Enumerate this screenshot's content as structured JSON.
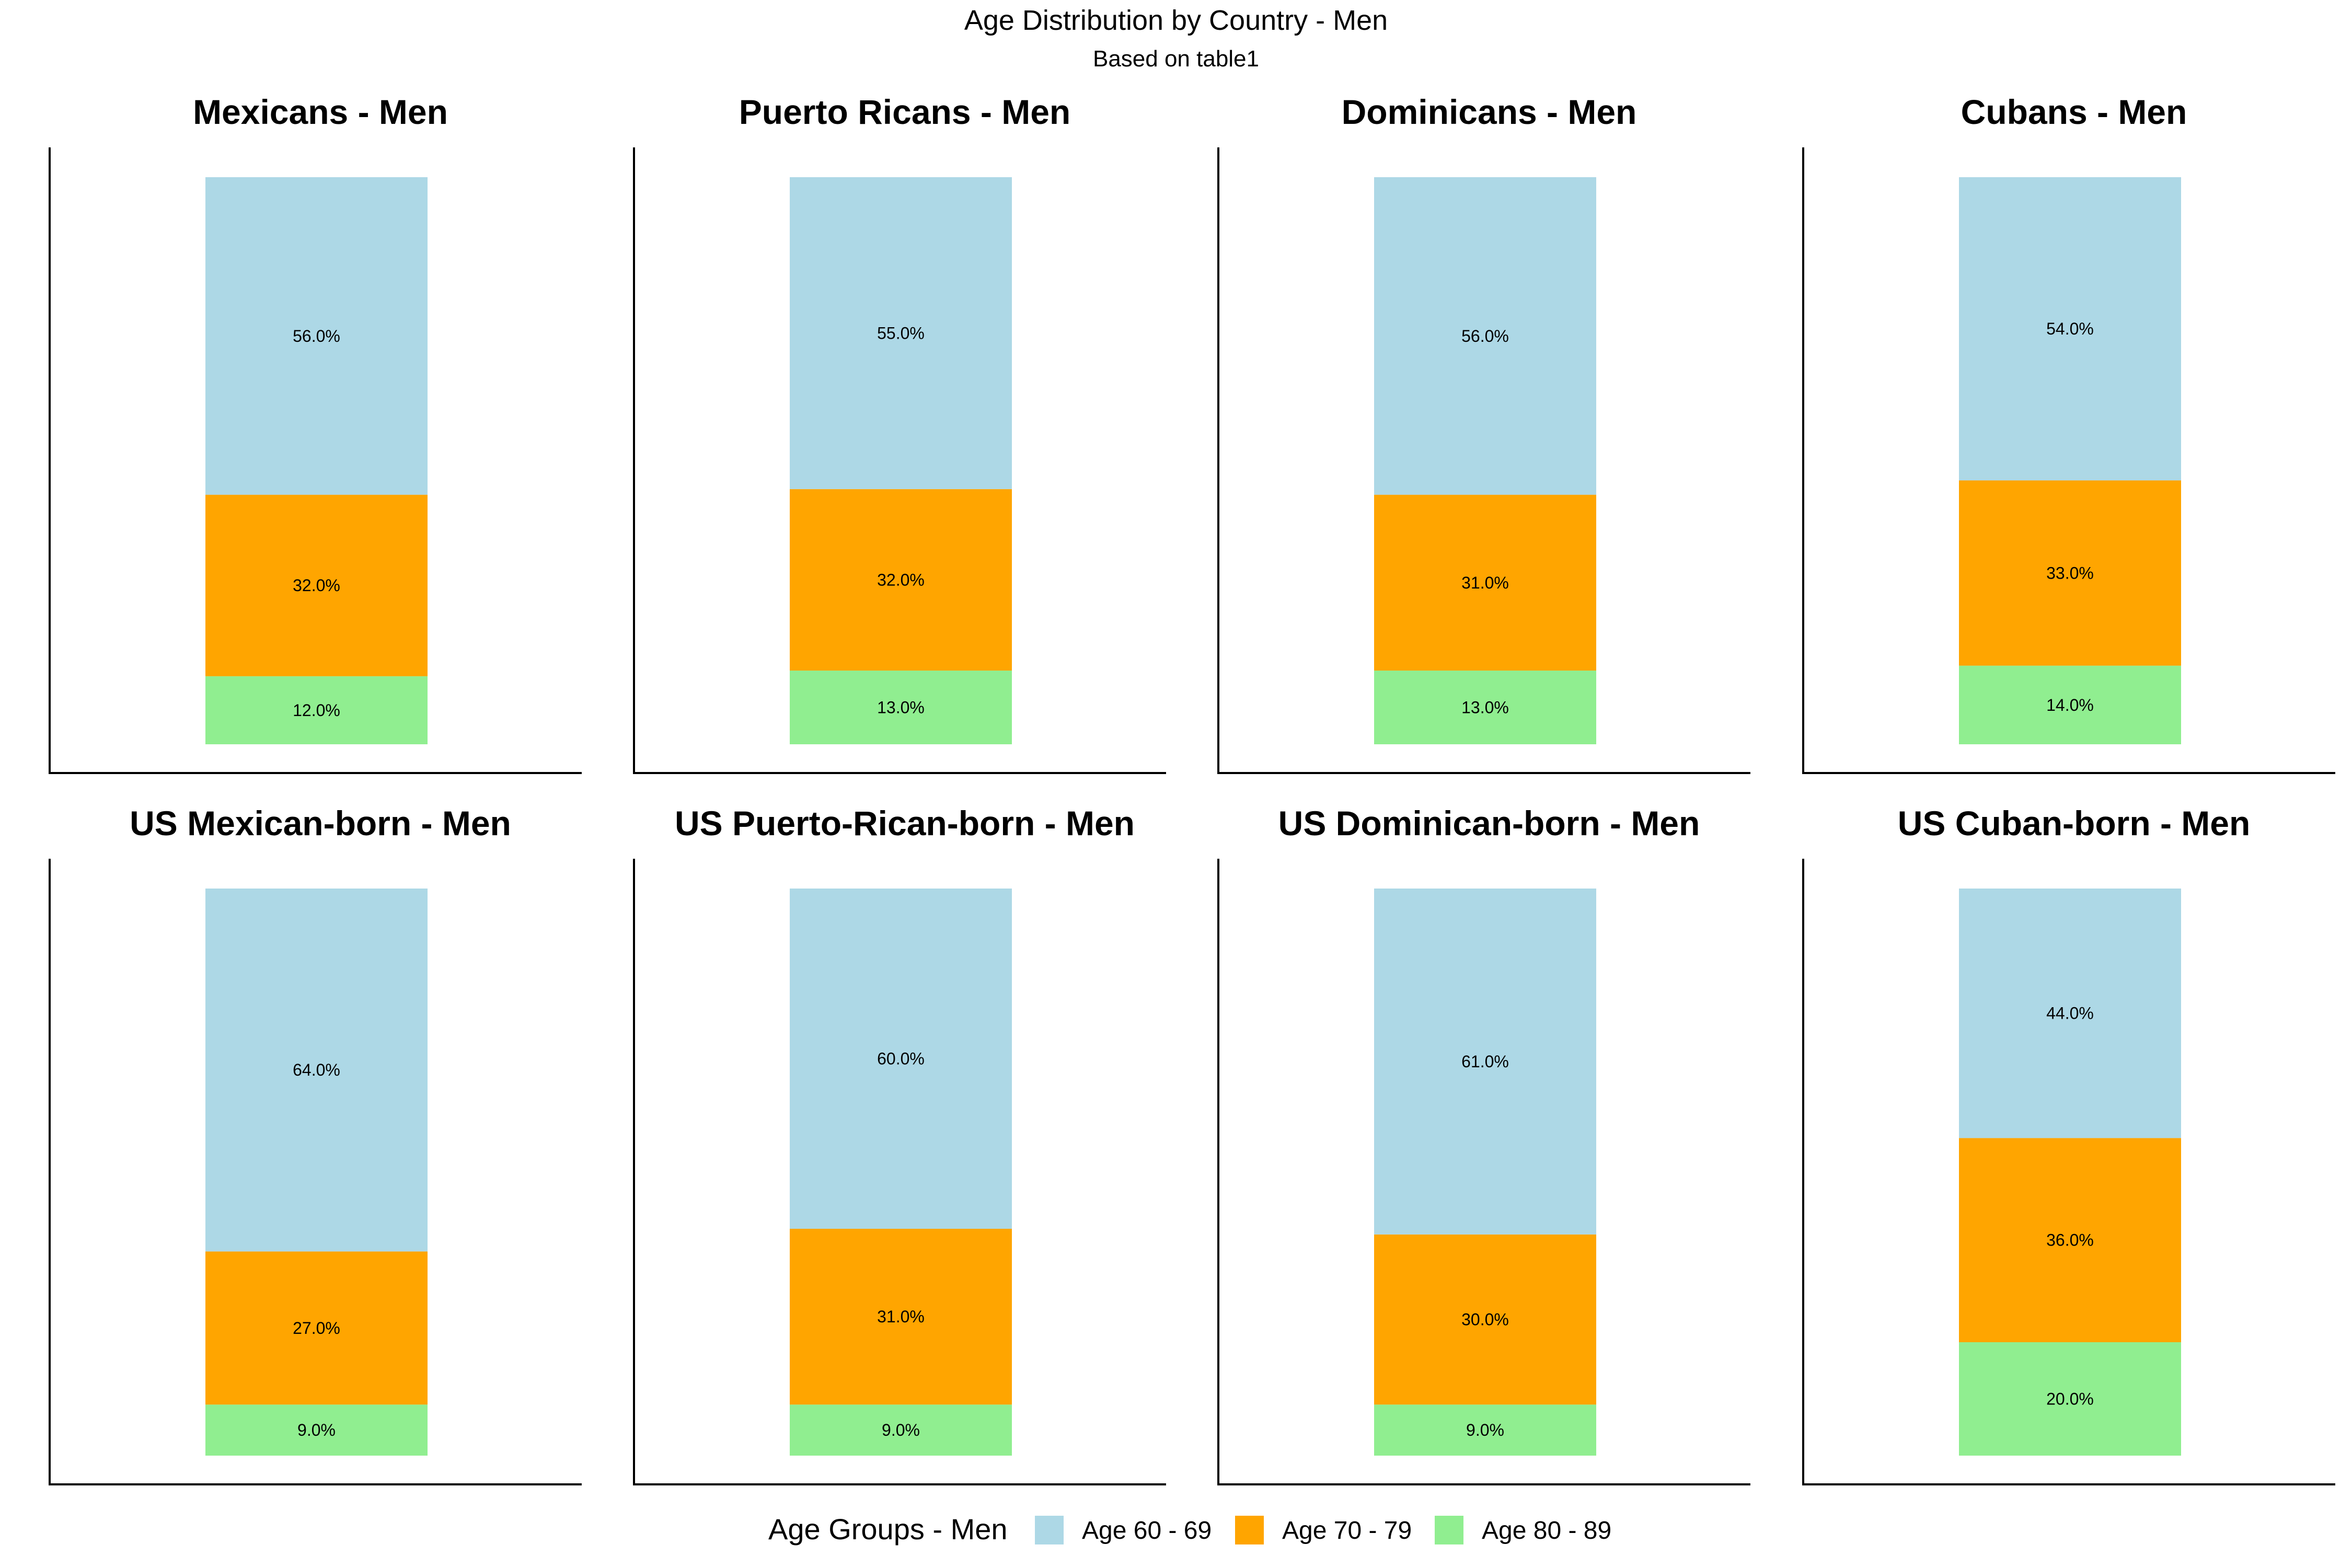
{
  "title": "Age Distribution by Country - Men",
  "subtitle": "Based on table1",
  "legend": {
    "title": "Age Groups - Men",
    "items": [
      {
        "label": "Age 60 - 69",
        "color": "#ADD8E6"
      },
      {
        "label": "Age 70 - 79",
        "color": "#FFA500"
      },
      {
        "label": "Age 80 - 89",
        "color": "#90EE90"
      }
    ]
  },
  "chart_data": [
    {
      "type": "bar",
      "stacked": true,
      "title": "Mexicans - Men",
      "series": [
        {
          "name": "Age 60 - 69",
          "value": 56.0
        },
        {
          "name": "Age 70 - 79",
          "value": 32.0
        },
        {
          "name": "Age 80 - 89",
          "value": 12.0
        }
      ]
    },
    {
      "type": "bar",
      "stacked": true,
      "title": "Puerto Ricans - Men",
      "series": [
        {
          "name": "Age 60 - 69",
          "value": 55.0
        },
        {
          "name": "Age 70 - 79",
          "value": 32.0
        },
        {
          "name": "Age 80 - 89",
          "value": 13.0
        }
      ]
    },
    {
      "type": "bar",
      "stacked": true,
      "title": "Dominicans - Men",
      "series": [
        {
          "name": "Age 60 - 69",
          "value": 56.0
        },
        {
          "name": "Age 70 - 79",
          "value": 31.0
        },
        {
          "name": "Age 80 - 89",
          "value": 13.0
        }
      ]
    },
    {
      "type": "bar",
      "stacked": true,
      "title": "Cubans - Men",
      "series": [
        {
          "name": "Age 60 - 69",
          "value": 54.0
        },
        {
          "name": "Age 70 - 79",
          "value": 33.0
        },
        {
          "name": "Age 80 - 89",
          "value": 14.0
        }
      ]
    },
    {
      "type": "bar",
      "stacked": true,
      "title": "US Mexican-born - Men",
      "series": [
        {
          "name": "Age 60 - 69",
          "value": 64.0
        },
        {
          "name": "Age 70 - 79",
          "value": 27.0
        },
        {
          "name": "Age 80 - 89",
          "value": 9.0
        }
      ]
    },
    {
      "type": "bar",
      "stacked": true,
      "title": "US Puerto-Rican-born - Men",
      "series": [
        {
          "name": "Age 60 - 69",
          "value": 60.0
        },
        {
          "name": "Age 70 - 79",
          "value": 31.0
        },
        {
          "name": "Age 80 - 89",
          "value": 9.0
        }
      ]
    },
    {
      "type": "bar",
      "stacked": true,
      "title": "US Dominican-born - Men",
      "series": [
        {
          "name": "Age 60 - 69",
          "value": 61.0
        },
        {
          "name": "Age 70 - 79",
          "value": 30.0
        },
        {
          "name": "Age 80 - 89",
          "value": 9.0
        }
      ]
    },
    {
      "type": "bar",
      "stacked": true,
      "title": "US Cuban-born - Men",
      "series": [
        {
          "name": "Age 60 - 69",
          "value": 44.0
        },
        {
          "name": "Age 70 - 79",
          "value": 36.0
        },
        {
          "name": "Age 80 - 89",
          "value": 20.0
        }
      ]
    }
  ]
}
